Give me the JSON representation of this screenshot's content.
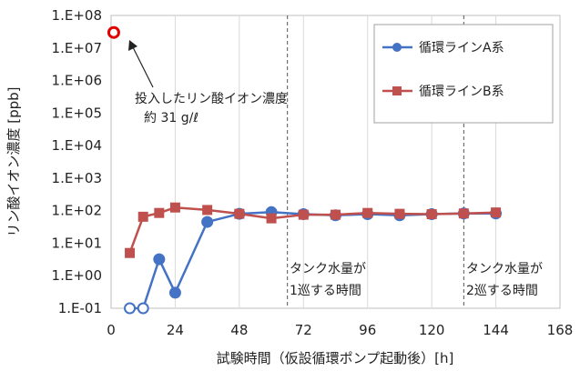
{
  "chart_data": {
    "type": "line",
    "xlabel": "試験時間（仮設循環ポンプ起動後）[h]",
    "ylabel": "リン酸イオン濃度 [ppb]",
    "x_scale": "linear",
    "y_scale": "log",
    "xlim": [
      0,
      168
    ],
    "ylim": [
      0.1,
      100000000
    ],
    "x_ticks": [
      0,
      24,
      48,
      72,
      96,
      120,
      144,
      168
    ],
    "x_tick_labels": [
      "0",
      "24",
      "48",
      "72",
      "96",
      "120",
      "144",
      "168"
    ],
    "y_ticks": [
      0.1,
      1,
      10,
      100,
      1000,
      10000,
      100000,
      1000000,
      10000000,
      100000000
    ],
    "y_tick_labels": [
      "1.E-01",
      "1.E+00",
      "1.E+01",
      "1.E+02",
      "1.E+03",
      "1.E+04",
      "1.E+05",
      "1.E+06",
      "1.E+07",
      "1.E+08"
    ],
    "grid": {
      "vertical": true,
      "horizontal": false
    },
    "legend_position": "top-right",
    "colors": {
      "series_a": "#4472C4",
      "series_b": "#C0504D",
      "initial_marker": "#E00000",
      "vline": "#555555"
    },
    "series": [
      {
        "name": "循環ラインA系",
        "marker": "circle",
        "x": [
          7,
          12,
          18,
          24,
          36,
          48,
          60,
          72,
          84,
          96,
          108,
          120,
          132,
          144
        ],
        "y": [
          0.1,
          0.1,
          3.2,
          0.3,
          45,
          80,
          90,
          78,
          72,
          78,
          72,
          78,
          82,
          82
        ],
        "open_points": [
          0,
          1
        ]
      },
      {
        "name": "循環ラインB系",
        "marker": "square",
        "x": [
          7,
          12,
          18,
          24,
          36,
          48,
          60,
          72,
          84,
          96,
          108,
          120,
          132,
          144
        ],
        "y": [
          5,
          65,
          85,
          125,
          105,
          80,
          58,
          75,
          75,
          85,
          80,
          78,
          82,
          88
        ]
      }
    ],
    "initial_point": {
      "x": 1,
      "y": 30000000
    },
    "annotations": {
      "initial_line1": "投入したリン酸イオン濃度",
      "initial_line2": "約 31 g/ℓ",
      "vline1": {
        "x": 66,
        "line1": "タンク水量が",
        "line2": "1巡する時間"
      },
      "vline2": {
        "x": 132,
        "line1": "タンク水量が",
        "line2": "2巡する時間"
      }
    }
  }
}
